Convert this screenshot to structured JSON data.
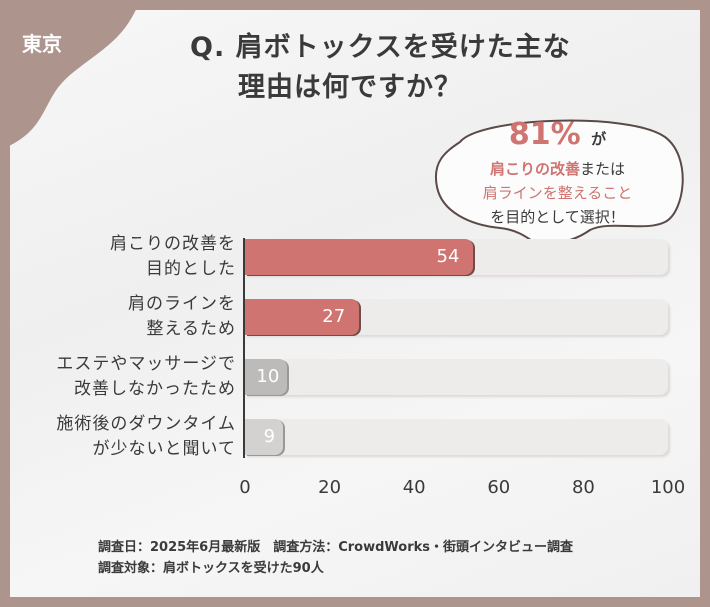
{
  "region": "東京",
  "title": {
    "line1": "Q. 肩ボトックスを受けた主な",
    "line2": "理由は何ですか？"
  },
  "callout": {
    "percent": "81%",
    "ga": "が",
    "line1_red": "肩こりの改善",
    "line1_rest": "または",
    "line2": "肩ラインを整えること",
    "line3": "を目的として選択！"
  },
  "colors": {
    "frame": "#ad958e",
    "highlight": "#cf7470",
    "muted": "#bdbbb9",
    "track": "#eeecea"
  },
  "chart_data": {
    "type": "bar",
    "orientation": "horizontal",
    "categories": [
      [
        "肩こりの改善を",
        "目的とした"
      ],
      [
        "肩のラインを",
        "整えるため"
      ],
      [
        "エステやマッサージで",
        "改善しなかったため"
      ],
      [
        "施術後のダウンタイム",
        "が少ないと聞いて"
      ]
    ],
    "values": [
      54,
      27,
      10,
      9
    ],
    "bar_colors": [
      "#cf7470",
      "#cf7470",
      "#bdbbb9",
      "#d4d2d0"
    ],
    "xlim": [
      0,
      100
    ],
    "xticks": [
      "0",
      "20",
      "40",
      "60",
      "80",
      "100"
    ],
    "grid": false
  },
  "footer": {
    "line1": "調査日：2025年6月最新版　調査方法：CrowdWorks・街頭インタビュー調査",
    "line2": "調査対象：肩ボトックスを受けた90人"
  }
}
